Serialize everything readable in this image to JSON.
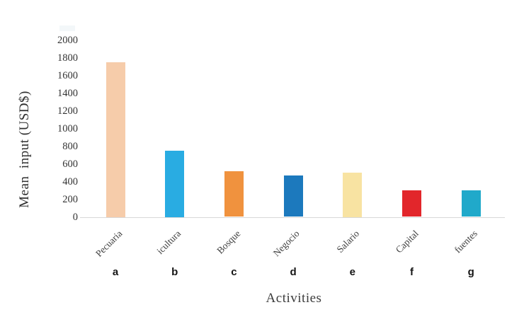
{
  "chart_data": {
    "type": "bar",
    "title": "",
    "xlabel": "Activities",
    "ylabel": "Mean  input (USD$)",
    "ylim": [
      0,
      2000
    ],
    "ytick_step": 200,
    "yticks": [
      0,
      200,
      400,
      600,
      800,
      1000,
      1200,
      1400,
      1600,
      1800,
      2000
    ],
    "categories": [
      "Pecuaria",
      "icultura",
      "Bosque",
      "Negocio",
      "Salario",
      "Capital",
      "fuentes"
    ],
    "letters": [
      "a",
      "b",
      "c",
      "d",
      "e",
      "f",
      "g"
    ],
    "series": [
      {
        "name": "Mean input (USD$)",
        "values": [
          1750,
          750,
          520,
          470,
          500,
          300,
          300
        ]
      }
    ],
    "bar_colors": [
      "#F6CCAA",
      "#29ACE2",
      "#F0923E",
      "#1C79BD",
      "#F8E3A2",
      "#E2262B",
      "#20A9CA"
    ],
    "axis_line_color": "#D8D8D8",
    "text_color": "#3C3C3C",
    "grid": false,
    "legend_position": "none"
  }
}
